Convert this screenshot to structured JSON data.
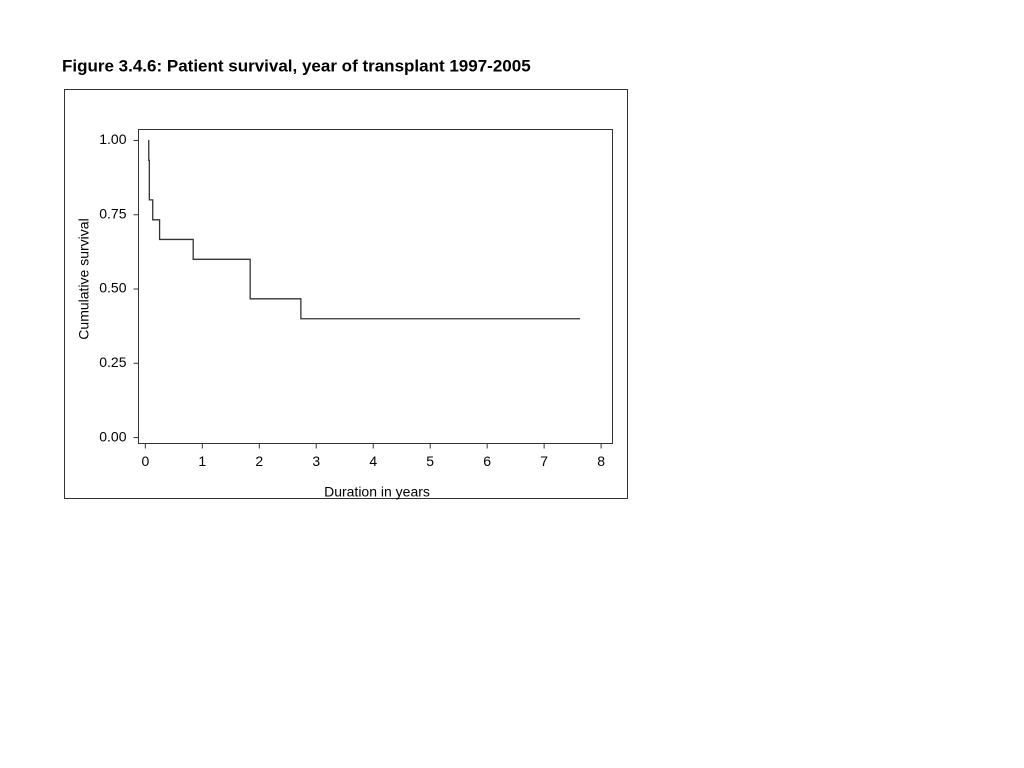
{
  "chart_data": {
    "type": "line",
    "step": "post",
    "title": "Figure 3.4.6: Patient survival, year of transplant 1997-2005",
    "x_label": "Duration in years",
    "y_label": "Cumulative survival",
    "x": [
      0.05,
      0.06,
      0.07,
      0.13,
      0.25,
      0.84,
      1.84,
      2.73,
      7.63
    ],
    "series": [
      {
        "color": "#333333",
        "values": [
          1,
          0.933,
          0.8,
          0.733,
          0.667,
          0.6,
          0.467,
          0.4,
          0.4
        ]
      }
    ],
    "xlim": [
      -0.12,
      8.2
    ],
    "ylim": [
      -0.02,
      1.037
    ],
    "xticks": [
      0,
      1,
      2,
      3,
      4,
      5,
      6,
      7,
      8
    ],
    "yticks": [
      {
        "value": 0,
        "label": "0.00"
      },
      0.25,
      {
        "value": 0.5,
        "label": "0.50"
      },
      0.75,
      {
        "value": 1,
        "label": "1.00"
      }
    ],
    "grid": false
  }
}
